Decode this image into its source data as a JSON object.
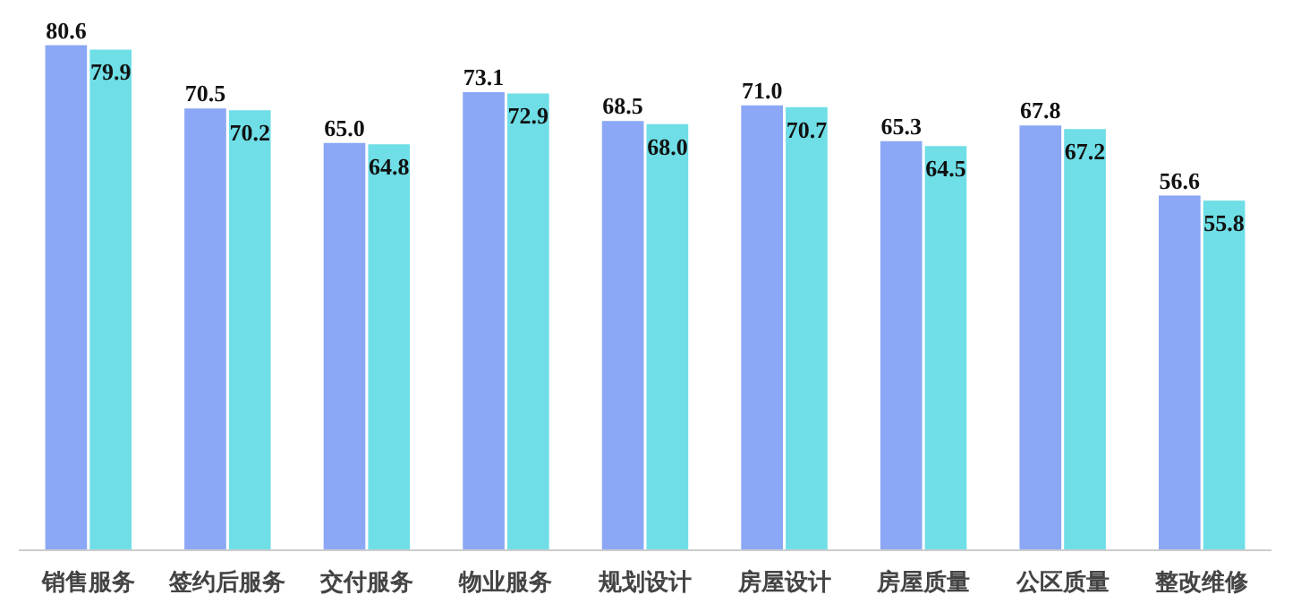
{
  "chart_data": {
    "type": "bar",
    "categories": [
      "销售服务",
      "签约后服务",
      "交付服务",
      "物业服务",
      "规划设计",
      "房屋设计",
      "房屋质量",
      "公区质量",
      "整改维修"
    ],
    "series": [
      {
        "color": "#8ba7f5",
        "values": [
          80.6,
          70.5,
          65.0,
          73.1,
          68.5,
          71.0,
          65.3,
          67.8,
          56.6
        ],
        "value_labels": [
          "80.6",
          "70.5",
          "65.0",
          "73.1",
          "68.5",
          "71.0",
          "65.3",
          "67.8",
          "56.6"
        ]
      },
      {
        "color": "#6fdee6",
        "values": [
          79.9,
          70.2,
          64.8,
          72.9,
          68.0,
          70.7,
          64.5,
          67.2,
          55.8
        ],
        "value_labels": [
          "79.9",
          "70.2",
          "64.8",
          "72.9",
          "68.0",
          "70.7",
          "64.5",
          "67.2",
          "55.8"
        ]
      }
    ],
    "grid": false
  }
}
